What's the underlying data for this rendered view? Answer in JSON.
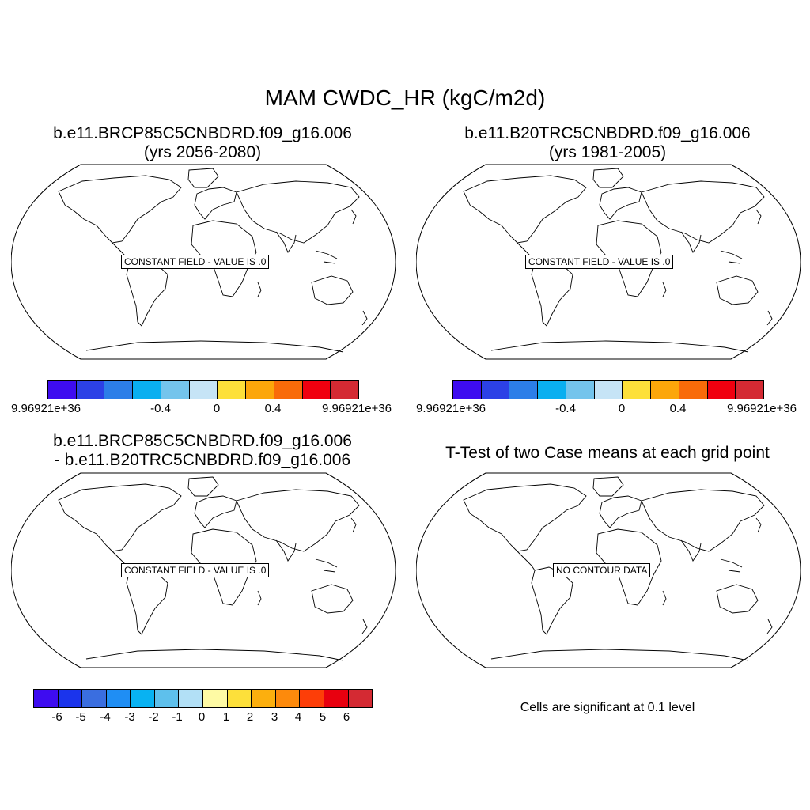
{
  "main_title": "MAM CWDC_HR (kgC/m2d)",
  "panels": {
    "top_left": {
      "title_line1": "b.e11.BRCP85C5CNBDRD.f09_g16.006",
      "title_line2": "(yrs 2056-2080)",
      "field_label": "CONSTANT FIELD - VALUE IS .0"
    },
    "top_right": {
      "title_line1": "b.e11.B20TRC5CNBDRD.f09_g16.006",
      "title_line2": "(yrs 1981-2005)",
      "field_label": "CONSTANT FIELD - VALUE IS .0"
    },
    "bottom_left": {
      "title_line1": "b.e11.BRCP85C5CNBDRD.f09_g16.006",
      "title_line2": "- b.e11.B20TRC5CNBDRD.f09_g16.006",
      "field_label": "CONSTANT FIELD - VALUE IS .0"
    },
    "bottom_right": {
      "title_line1": "T-Test of two Case means at each grid point",
      "field_label": "NO CONTOUR DATA",
      "note": "Cells are significant at 0.1 level"
    }
  },
  "colorbar_top": {
    "colors": [
      "#3e0cf0",
      "#2c41e6",
      "#2c7ee8",
      "#0aaff0",
      "#74c4ec",
      "#c6e4f6",
      "#fde03a",
      "#fca60a",
      "#f96b09",
      "#f0000f",
      "#d42a33"
    ],
    "labels": [
      "9.96921e+36",
      "-0.4",
      "0",
      "0.4",
      "9.96921e+36"
    ]
  },
  "colorbar_bottom": {
    "colors": [
      "#3e0cf0",
      "#1b34ec",
      "#3a6ee0",
      "#1f8ef4",
      "#08b2f2",
      "#5ec0ec",
      "#b2e0f6",
      "#fefaa4",
      "#fde03a",
      "#fcaf0e",
      "#fd8a0c",
      "#fd3e08",
      "#e8000f",
      "#d42a33"
    ],
    "labels": [
      "-6",
      "-5",
      "-4",
      "-3",
      "-2",
      "-1",
      "0",
      "1",
      "2",
      "3",
      "4",
      "5",
      "6"
    ]
  }
}
